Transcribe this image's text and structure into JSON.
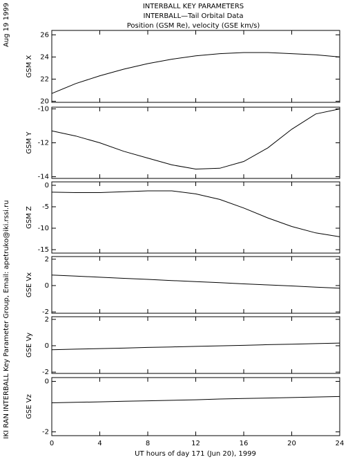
{
  "title": [
    "INTERBALL KEY PARAMETERS",
    "INTERBALL—Tail Orbital Data",
    "Position (GSM Re), velocity (GSE km/s)"
  ],
  "side_date": "Aug 19 1999",
  "credit": "IKI RAN INTERBALL Key Parameter Group, Email: apetruko@iki.rssi.ru",
  "xlabel": "UT hours of day 171 (Jun 20), 1999",
  "xlim": [
    0,
    24
  ],
  "xticks": [
    0,
    4,
    8,
    12,
    16,
    20,
    24
  ],
  "chart_data": [
    {
      "type": "line",
      "ylabel": "GSM X",
      "x": [
        0,
        2,
        4,
        6,
        8,
        10,
        12,
        14,
        16,
        18,
        20,
        22,
        24
      ],
      "values": [
        20.7,
        21.6,
        22.3,
        22.9,
        23.4,
        23.8,
        24.1,
        24.3,
        24.4,
        24.4,
        24.3,
        24.2,
        24.0
      ],
      "ylim": [
        19.9,
        26.4
      ],
      "yticks": [
        20,
        22,
        24,
        26
      ],
      "color": "#000000"
    },
    {
      "type": "line",
      "ylabel": "GSM Y",
      "x": [
        0,
        2,
        4,
        6,
        8,
        10,
        12,
        14,
        16,
        18,
        20,
        22,
        24
      ],
      "values": [
        -11.3,
        -11.6,
        -12.0,
        -12.5,
        -12.9,
        -13.3,
        -13.55,
        -13.5,
        -13.1,
        -12.3,
        -11.2,
        -10.3,
        -10.0
      ],
      "ylim": [
        -14.1,
        -9.9
      ],
      "yticks": [
        -14,
        -12,
        -10
      ],
      "color": "#000000"
    },
    {
      "type": "line",
      "ylabel": "GSM Z",
      "x": [
        0,
        2,
        4,
        6,
        8,
        10,
        12,
        14,
        16,
        18,
        20,
        22,
        24
      ],
      "values": [
        -1.6,
        -1.7,
        -1.7,
        -1.5,
        -1.3,
        -1.3,
        -2.0,
        -3.3,
        -5.3,
        -7.6,
        -9.6,
        -11.1,
        -12.0
      ],
      "ylim": [
        -15.8,
        0.8
      ],
      "yticks": [
        0,
        -5,
        -10,
        -15
      ],
      "color": "#000000"
    },
    {
      "type": "line",
      "ylabel": "GSE Vx",
      "x": [
        0,
        2,
        4,
        6,
        8,
        10,
        12,
        14,
        16,
        18,
        20,
        22,
        24
      ],
      "values": [
        0.8,
        0.72,
        0.63,
        0.55,
        0.47,
        0.38,
        0.3,
        0.22,
        0.13,
        0.05,
        -0.03,
        -0.12,
        -0.2
      ],
      "ylim": [
        -2.1,
        2.2
      ],
      "yticks": [
        2,
        0,
        -2
      ],
      "color": "#000000"
    },
    {
      "type": "line",
      "ylabel": "GSE Vy",
      "x": [
        0,
        2,
        4,
        6,
        8,
        10,
        12,
        14,
        16,
        18,
        20,
        22,
        24
      ],
      "values": [
        -0.3,
        -0.26,
        -0.22,
        -0.18,
        -0.13,
        -0.09,
        -0.05,
        -0.01,
        0.03,
        0.08,
        0.12,
        0.16,
        0.2
      ],
      "ylim": [
        -2.1,
        2.2
      ],
      "yticks": [
        2,
        0,
        -2
      ],
      "color": "#000000"
    },
    {
      "type": "line",
      "ylabel": "GSE Vz",
      "x": [
        0,
        2,
        4,
        6,
        8,
        10,
        12,
        14,
        16,
        18,
        20,
        22,
        24
      ],
      "values": [
        -0.85,
        -0.83,
        -0.81,
        -0.79,
        -0.77,
        -0.75,
        -0.73,
        -0.7,
        -0.68,
        -0.66,
        -0.64,
        -0.62,
        -0.6
      ],
      "ylim": [
        -2.15,
        0.15
      ],
      "yticks": [
        0,
        -2
      ],
      "color": "#000000"
    }
  ]
}
